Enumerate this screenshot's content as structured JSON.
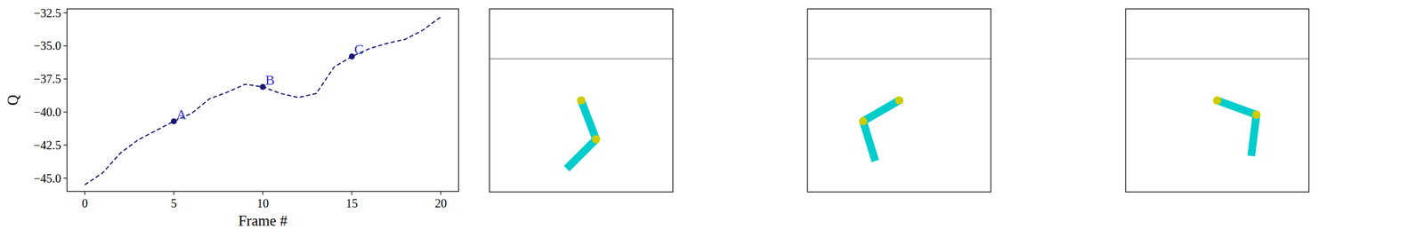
{
  "chart_data": {
    "type": "line",
    "x_label": "Frame #",
    "y_label": "Q",
    "x": [
      0,
      1,
      2,
      3,
      4,
      5,
      6,
      7,
      8,
      9,
      10,
      11,
      12,
      13,
      14,
      15,
      16,
      17,
      18,
      19,
      20
    ],
    "values": [
      -45.5,
      -44.6,
      -43.1,
      -42.1,
      -41.4,
      -40.7,
      -40.1,
      -39.0,
      -38.5,
      -37.9,
      -38.1,
      -38.6,
      -38.9,
      -38.6,
      -36.6,
      -35.8,
      -35.2,
      -34.8,
      -34.5,
      -33.8,
      -32.8
    ],
    "color": "#191970",
    "line_style": "dashed",
    "xlim": [
      -1,
      21
    ],
    "ylim": [
      -46,
      -32.2
    ],
    "xticks": [
      0,
      5,
      10,
      15,
      20
    ],
    "yticks": [
      {
        "value": -45,
        "label": "−45.0"
      },
      {
        "value": -42.5,
        "label": "−42.5"
      },
      {
        "value": -40,
        "label": "−40.0"
      },
      {
        "value": -37.5,
        "label": "−37.5"
      },
      {
        "value": -35,
        "label": "−35.0"
      },
      {
        "value": -32.5,
        "label": "−32.5"
      }
    ],
    "grid": false,
    "annotations": [
      {
        "text": "A",
        "x": 5,
        "y": -40.7
      },
      {
        "text": "B",
        "x": 10,
        "y": -38.1
      },
      {
        "text": "C",
        "x": 15,
        "y": -35.8
      }
    ]
  },
  "panels": {
    "target_height": 1,
    "limits": [
      -2.2,
      2.2
    ],
    "states": [
      {
        "theta1": 21,
        "theta2": -66
      },
      {
        "theta1": -60,
        "theta2": 77
      },
      {
        "theta1": 70,
        "theta2": -77
      }
    ]
  }
}
